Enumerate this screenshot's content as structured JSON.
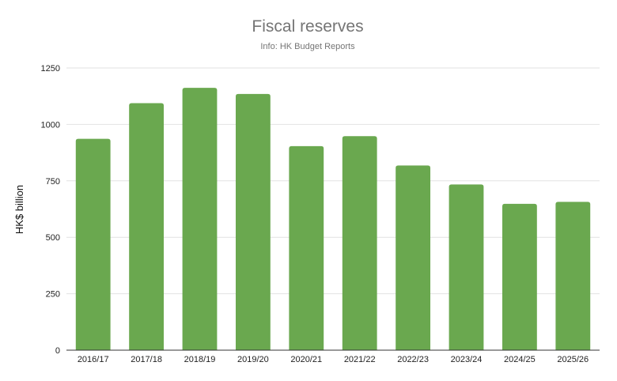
{
  "chart_data": {
    "type": "bar",
    "title": "Fiscal reserves",
    "subtitle": "Info: HK Budget Reports",
    "xlabel": "",
    "ylabel": "HK$ billion",
    "categories": [
      "2016/17",
      "2017/18",
      "2018/19",
      "2019/20",
      "2020/21",
      "2021/22",
      "2022/23",
      "2023/24",
      "2024/25",
      "2025/26"
    ],
    "values": [
      936,
      1094,
      1162,
      1135,
      904,
      948,
      818,
      734,
      648,
      657
    ],
    "ylim": [
      0,
      1250
    ],
    "yticks": [
      0,
      250,
      500,
      750,
      1000,
      1250
    ],
    "bar_color": "#6aa84f",
    "grid": true,
    "legend": "none"
  }
}
